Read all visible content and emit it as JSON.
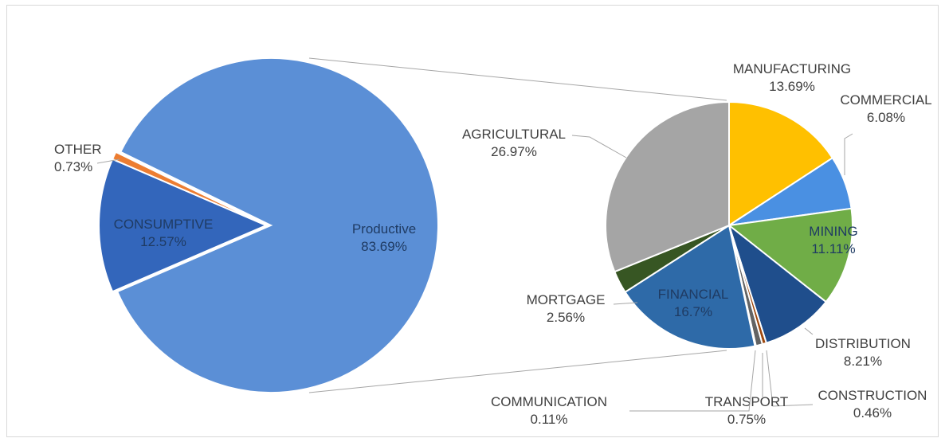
{
  "chart_data": [
    {
      "type": "pie",
      "title": "",
      "slices": [
        {
          "label": "Productive",
          "value": 83.69,
          "display": "83.69%",
          "color": "#5b8fd6"
        },
        {
          "label": "CONSUMPTIVE",
          "value": 12.57,
          "display": "12.57%",
          "color": "#3366bb"
        },
        {
          "label": "OTHER",
          "value": 0.73,
          "display": "0.73%",
          "color": "#ed7d31"
        }
      ]
    },
    {
      "type": "pie",
      "title": "",
      "slices": [
        {
          "label": "MANUFACTURING",
          "value": 13.69,
          "display": "13.69%",
          "color": "#ffc000"
        },
        {
          "label": "COMMERCIAL",
          "value": 6.08,
          "display": "6.08%",
          "color": "#4a90e2"
        },
        {
          "label": "MINING",
          "value": 11.11,
          "display": "11.11%",
          "color": "#70ad47"
        },
        {
          "label": "DISTRIBUTION",
          "value": 8.21,
          "display": "8.21%",
          "color": "#1f4e8c"
        },
        {
          "label": "CONSTRUCTION",
          "value": 0.46,
          "display": "0.46%",
          "color": "#9e480e"
        },
        {
          "label": "TRANSPORT",
          "value": 0.75,
          "display": "0.75%",
          "color": "#636363"
        },
        {
          "label": "COMMUNICATION",
          "value": 0.11,
          "display": "0.11%",
          "color": "#997300"
        },
        {
          "label": "FINANCIAL",
          "value": 16.7,
          "display": "16.7%",
          "color": "#2e6aa8"
        },
        {
          "label": "MORTGAGE",
          "value": 2.56,
          "display": "2.56%",
          "color": "#375623"
        },
        {
          "label": "AGRICULTURAL",
          "value": 26.97,
          "display": "26.97%",
          "color": "#a5a5a5"
        }
      ]
    }
  ]
}
